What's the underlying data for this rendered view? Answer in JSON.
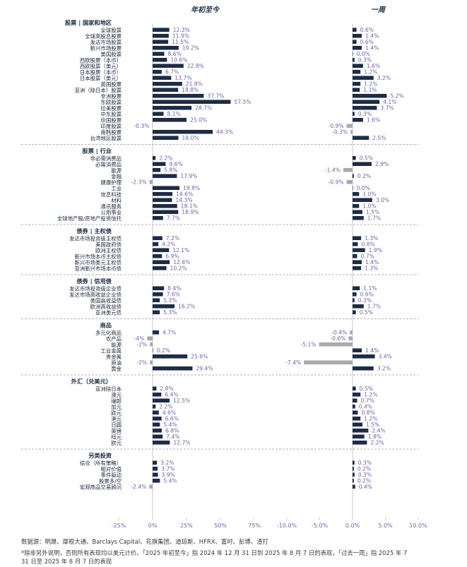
{
  "chart_data": {
    "type": "bar",
    "orientation": "horizontal",
    "panels": [
      {
        "title": "年初至今",
        "xlim": [
          -25,
          75
        ],
        "ticks": [
          "-25%",
          "0%",
          "25%",
          "50%",
          "75%"
        ],
        "tick_values": [
          -25,
          0,
          25,
          50,
          75
        ]
      },
      {
        "title": "一周",
        "xlim": [
          -10,
          10
        ],
        "ticks": [
          "-10.0%",
          "-5.0%",
          "0.0%",
          "5.0%",
          "10.0%"
        ],
        "tick_values": [
          -10,
          -5,
          0,
          5,
          10
        ]
      }
    ],
    "colors": {
      "positive": "#1d2c45",
      "negative": "#a9a9a9",
      "label": "#6f63a6",
      "axis": "#c7c7c7"
    },
    "sections": [
      {
        "title": "股票 | 国家和地区",
        "items": [
          {
            "name": "全球股票",
            "ytd": 12.3,
            "ytd_label": "12.3%",
            "week": 0.6,
            "week_label": "0.6%"
          },
          {
            "name": "全球高股息股票",
            "ytd": 11.9,
            "ytd_label": "11.9%",
            "week": 1.4,
            "week_label": "1.4%"
          },
          {
            "name": "发达市场股票",
            "ytd": 11.5,
            "ytd_label": "11.5%",
            "week": 0.6,
            "week_label": "0.6%"
          },
          {
            "name": "新兴市场股票",
            "ytd": 19.2,
            "ytd_label": "19.2%",
            "week": 1.4,
            "week_label": "1.4%"
          },
          {
            "name": "美国股票",
            "ytd": 8.6,
            "ytd_label": "8.6%",
            "week": 0.0,
            "week_label": "0.0%"
          },
          {
            "name": "西欧股票（本币）",
            "ytd": 10.6,
            "ytd_label": "10.6%",
            "week": 0.3,
            "week_label": "0.3%"
          },
          {
            "name": "西欧股票（美元）",
            "ytd": 22.8,
            "ytd_label": "22.8%",
            "week": 1.6,
            "week_label": "1.6%"
          },
          {
            "name": "日本股票（本币）",
            "ytd": 6.7,
            "ytd_label": "6.7%",
            "week": 1.2,
            "week_label": "1.2%"
          },
          {
            "name": "日本股票（美元）",
            "ytd": 13.7,
            "ytd_label": "13.7%",
            "week": 3.2,
            "week_label": "3.2%"
          },
          {
            "name": "英国股票",
            "ytd": 21.8,
            "ytd_label": "21.8%",
            "week": 1.2,
            "week_label": "1.2%"
          },
          {
            "name": "亚洲（除日本）股票",
            "ytd": 18.8,
            "ytd_label": "18.8%",
            "week": 1.1,
            "week_label": "1.1%"
          },
          {
            "name": "非洲股票",
            "ytd": 37.7,
            "ytd_label": "37.7%",
            "week": 5.2,
            "week_label": "5.2%"
          },
          {
            "name": "东欧股票",
            "ytd": 57.5,
            "ytd_label": "57.5%",
            "week": 4.1,
            "week_label": "4.1%"
          },
          {
            "name": "拉美股票",
            "ytd": 28.7,
            "ytd_label": "28.7%",
            "week": 3.7,
            "week_label": "3.7%"
          },
          {
            "name": "中东股票",
            "ytd": 8.1,
            "ytd_label": "8.1%",
            "week": 0.3,
            "week_label": "0.3%"
          },
          {
            "name": "中国股票",
            "ytd": 25.0,
            "ytd_label": "25.0%",
            "week": 1.6,
            "week_label": "1.6%"
          },
          {
            "name": "印度股票",
            "ytd": -0.3,
            "ytd_label": "-0.3%",
            "week": -0.9,
            "week_label": "-0.9%"
          },
          {
            "name": "南韩股票",
            "ytd": 44.3,
            "ytd_label": "44.3%",
            "week": -0.3,
            "week_label": "-0.3%"
          },
          {
            "name": "台湾地区股票",
            "ytd": 19.0,
            "ytd_label": "19.0%",
            "week": 2.5,
            "week_label": "2.5%"
          }
        ]
      },
      {
        "title": "股票 | 行业",
        "items": [
          {
            "name": "非必需消费品",
            "ytd": 2.2,
            "ytd_label": "2.2%",
            "week": 0.5,
            "week_label": "0.5%"
          },
          {
            "name": "必需消费品",
            "ytd": 9.6,
            "ytd_label": "9.6%",
            "week": 2.9,
            "week_label": "2.9%"
          },
          {
            "name": "能源",
            "ytd": 5.8,
            "ytd_label": "5.8%",
            "week": -1.4,
            "week_label": "-1.4%"
          },
          {
            "name": "金融",
            "ytd": 17.9,
            "ytd_label": "17.9%",
            "week": 0.2,
            "week_label": "0.2%"
          },
          {
            "name": "健康护理",
            "ytd": -2.3,
            "ytd_label": "-2.3%",
            "week": -0.9,
            "week_label": "-0.9%"
          },
          {
            "name": "工业",
            "ytd": 19.8,
            "ytd_label": "19.8%",
            "week": 0.0,
            "week_label": "0.0%"
          },
          {
            "name": "信息科技",
            "ytd": 14.6,
            "ytd_label": "14.6%",
            "week": 1.0,
            "week_label": "1.0%"
          },
          {
            "name": "材料",
            "ytd": 14.3,
            "ytd_label": "14.3%",
            "week": 3.0,
            "week_label": "3.0%"
          },
          {
            "name": "通讯服务",
            "ytd": 18.1,
            "ytd_label": "18.1%",
            "week": 1.0,
            "week_label": "1.0%"
          },
          {
            "name": "公用事业",
            "ytd": 18.9,
            "ytd_label": "18.9%",
            "week": 1.5,
            "week_label": "1.5%"
          },
          {
            "name": "全球地产股/房地产投资信托",
            "ytd": 7.7,
            "ytd_label": "7.7%",
            "week": 1.7,
            "week_label": "1.7%"
          }
        ]
      },
      {
        "title": "债券 | 主权债",
        "items": [
          {
            "name": "发达市场投资级主权债",
            "ytd": 7.2,
            "ytd_label": "7.2%",
            "week": 1.3,
            "week_label": "1.3%"
          },
          {
            "name": "美国政府债",
            "ytd": 4.2,
            "ytd_label": "4.2%",
            "week": 0.8,
            "week_label": "0.8%"
          },
          {
            "name": "欧洲主权债",
            "ytd": 12.1,
            "ytd_label": "12.1%",
            "week": 1.9,
            "week_label": "1.9%"
          },
          {
            "name": "新兴市场本币主权债",
            "ytd": 6.9,
            "ytd_label": "6.9%",
            "week": 0.7,
            "week_label": "0.7%"
          },
          {
            "name": "新兴市场美元主权债",
            "ytd": 12.6,
            "ytd_label": "12.6%",
            "week": 1.4,
            "week_label": "1.4%"
          },
          {
            "name": "亚洲新兴市场本币债",
            "ytd": 10.2,
            "ytd_label": "10.2%",
            "week": 1.3,
            "week_label": "1.3%"
          }
        ]
      },
      {
        "title": "债券 | 信用债",
        "items": [
          {
            "name": "发达市场投资级企业债",
            "ytd": 8.4,
            "ytd_label": "8.4%",
            "week": 1.1,
            "week_label": "1.1%"
          },
          {
            "name": "发达市场高收益企业债",
            "ytd": 7.6,
            "ytd_label": "7.6%",
            "week": 0.6,
            "week_label": "0.6%"
          },
          {
            "name": "美国高收益债",
            "ytd": 5.3,
            "ytd_label": "5.3%",
            "week": 0.3,
            "week_label": "0.3%"
          },
          {
            "name": "欧洲高收益债",
            "ytd": 16.2,
            "ytd_label": "16.2%",
            "week": 1.7,
            "week_label": "1.7%"
          },
          {
            "name": "亚洲美元债",
            "ytd": 5.3,
            "ytd_label": "5.3%",
            "week": 0.5,
            "week_label": "0.5%"
          }
        ]
      },
      {
        "title": "商品",
        "items": [
          {
            "name": "多元化商品",
            "ytd": 4.7,
            "ytd_label": "4.7%",
            "week": -0.4,
            "week_label": "-0.4%"
          },
          {
            "name": "农产品",
            "ytd": -4.0,
            "ytd_label": "-4%",
            "week": -0.6,
            "week_label": "-0.6%"
          },
          {
            "name": "能源",
            "ytd": -2.0,
            "ytd_label": "-2%",
            "week": -5.1,
            "week_label": "-5.1%"
          },
          {
            "name": "工业金属",
            "ytd": 0.2,
            "ytd_label": "0.2%",
            "week": 1.4,
            "week_label": "1.4%"
          },
          {
            "name": "贵金属",
            "ytd": 25.6,
            "ytd_label": "25.6%",
            "week": 3.4,
            "week_label": "3.4%"
          },
          {
            "name": "原油",
            "ytd": -2.0,
            "ytd_label": "-2%",
            "week": -7.4,
            "week_label": "-7.4%"
          },
          {
            "name": "黄金",
            "ytd": 29.4,
            "ytd_label": "29.4%",
            "week": 3.2,
            "week_label": "3.2%"
          }
        ]
      },
      {
        "title": "外汇（兑美元）",
        "items": [
          {
            "name": "亚洲除日本",
            "ytd": 2.8,
            "ytd_label": "2.8%",
            "week": 0.5,
            "week_label": "0.5%"
          },
          {
            "name": "澳元",
            "ytd": 6.4,
            "ytd_label": "6.4%",
            "week": 1.2,
            "week_label": "1.2%"
          },
          {
            "name": "瑞郎",
            "ytd": 12.5,
            "ytd_label": "12.5%",
            "week": 0.7,
            "week_label": "0.7%"
          },
          {
            "name": "加元",
            "ytd": 2.2,
            "ytd_label": "2.2%",
            "week": 0.4,
            "week_label": "0.4%"
          },
          {
            "name": "欧元",
            "ytd": 4.6,
            "ytd_label": "4.6%",
            "week": 0.8,
            "week_label": "0.8%"
          },
          {
            "name": "港元",
            "ytd": 6.6,
            "ytd_label": "6.6%",
            "week": 1.2,
            "week_label": "1.2%"
          },
          {
            "name": "日圆",
            "ytd": 5.4,
            "ytd_label": "5.4%",
            "week": 1.5,
            "week_label": "1.5%"
          },
          {
            "name": "英镑",
            "ytd": 6.8,
            "ytd_label": "6.8%",
            "week": 2.4,
            "week_label": "2.4%"
          },
          {
            "name": "纽元",
            "ytd": 7.4,
            "ytd_label": "7.4%",
            "week": 1.8,
            "week_label": "1.8%"
          },
          {
            "name": "欧元",
            "ytd": 12.7,
            "ytd_label": "12.7%",
            "week": 2.2,
            "week_label": "2.2%"
          }
        ]
      },
      {
        "title": "另类投资",
        "items": [
          {
            "name": "综合（所有策略）",
            "ytd": 3.2,
            "ytd_label": "3.2%",
            "week": 0.3,
            "week_label": "0.3%"
          },
          {
            "name": "相对价值",
            "ytd": 3.7,
            "ytd_label": "3.7%",
            "week": 0.2,
            "week_label": "0.2%"
          },
          {
            "name": "事件驱动",
            "ytd": 3.9,
            "ytd_label": "3.9%",
            "week": 0.3,
            "week_label": "0.3%"
          },
          {
            "name": "股票多/空",
            "ytd": 5.4,
            "ytd_label": "5.4%",
            "week": 0.2,
            "week_label": "0.2%"
          },
          {
            "name": "宏观商品交易顾问",
            "ytd": -2.4,
            "ytd_label": "-2.4%",
            "week": 0.4,
            "week_label": "0.4%"
          }
        ]
      }
    ]
  },
  "footer": {
    "source": "数据源：明晟、摩根大通、Barclays Capital、花旗集团、道琼斯、HFRX、富时、彭博、渣打",
    "note_line1": "*除非另外说明，否则所有表现均以美元计价。「2025 年初至今」指 2024 年 12 月 31 日到 2025 年 8 月 7 日的表现，「过去一周」指 2025 年 7",
    "note_line2": "31 日至 2025 年 8 月 7 日的表现"
  }
}
